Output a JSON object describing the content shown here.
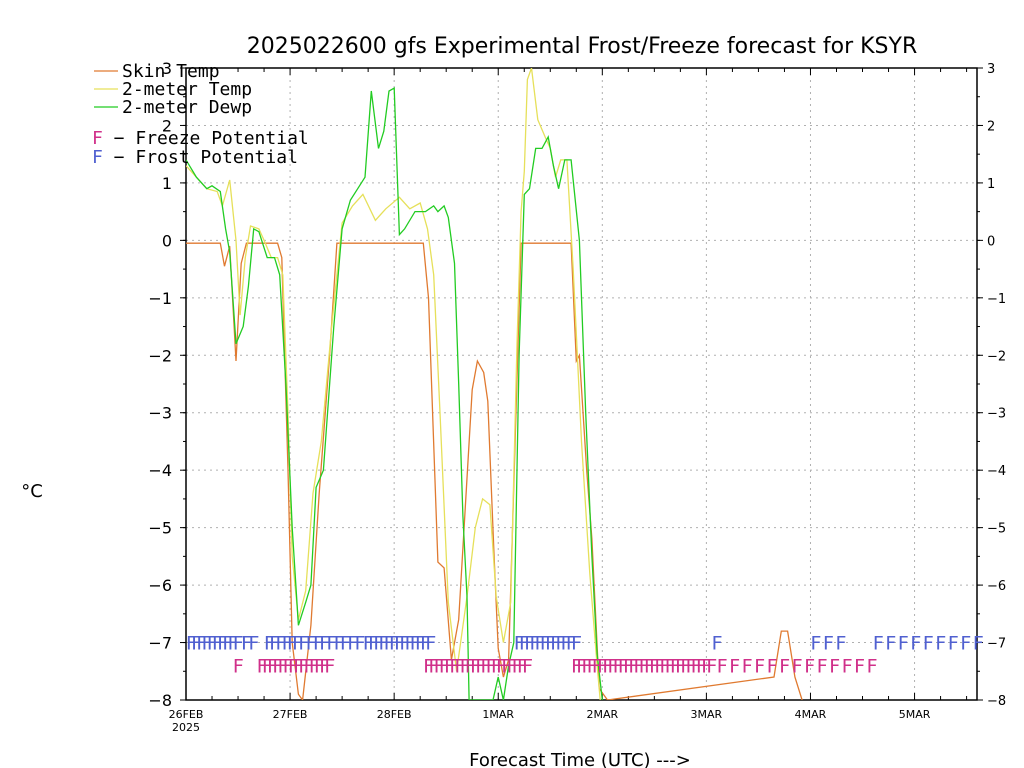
{
  "title": "2025022600 gfs Experimental Frost/Freeze forecast for KSYR",
  "chart_data": {
    "type": "line",
    "title": "2025022600 gfs Experimental Frost/Freeze forecast for KSYR",
    "xlabel": "Forecast Time (UTC) --->",
    "ylabel": "°C",
    "ylim": [
      -8,
      3
    ],
    "xlim": [
      0,
      7.6
    ],
    "grid": true,
    "legend_position": "top-left",
    "x_unit_note_hidden": true,
    "x_ticks": [
      {
        "x": 0,
        "label": "26FEB",
        "sub": "2025"
      },
      {
        "x": 1,
        "label": "27FEB",
        "sub": ""
      },
      {
        "x": 2,
        "label": "28FEB",
        "sub": ""
      },
      {
        "x": 3,
        "label": "1MAR",
        "sub": ""
      },
      {
        "x": 4,
        "label": "2MAR",
        "sub": ""
      },
      {
        "x": 5,
        "label": "3MAR",
        "sub": ""
      },
      {
        "x": 6,
        "label": "4MAR",
        "sub": ""
      },
      {
        "x": 7,
        "label": "5MAR",
        "sub": ""
      }
    ],
    "y_ticks": [
      3,
      2,
      1,
      0,
      -1,
      -2,
      -3,
      -4,
      -5,
      -6,
      -7,
      -8
    ],
    "y_tick_labels": [
      "3",
      "2",
      "1",
      "0",
      "−1",
      "−2",
      "−3",
      "−4",
      "−5",
      "−6",
      "−7",
      "−8"
    ],
    "series": [
      {
        "name": "Skin Temp",
        "color": "#e07a30",
        "points": [
          [
            0,
            -0.05
          ],
          [
            0.33,
            -0.05
          ],
          [
            0.37,
            -0.45
          ],
          [
            0.42,
            -0.1
          ],
          [
            0.48,
            -2.1
          ],
          [
            0.53,
            -0.4
          ],
          [
            0.58,
            -0.05
          ],
          [
            0.88,
            -0.05
          ],
          [
            0.92,
            -0.3
          ],
          [
            0.98,
            -4
          ],
          [
            1.02,
            -7
          ],
          [
            1.08,
            -7.9
          ],
          [
            1.12,
            -8
          ],
          [
            1.2,
            -6.7
          ],
          [
            1.28,
            -4.4
          ],
          [
            1.38,
            -2
          ],
          [
            1.45,
            -0.05
          ],
          [
            2.28,
            -0.05
          ],
          [
            2.33,
            -1
          ],
          [
            2.42,
            -5.6
          ],
          [
            2.48,
            -5.7
          ],
          [
            2.55,
            -7.3
          ],
          [
            2.62,
            -6.6
          ],
          [
            2.75,
            -2.6
          ],
          [
            2.8,
            -2.1
          ],
          [
            2.86,
            -2.3
          ],
          [
            2.9,
            -2.8
          ],
          [
            2.96,
            -5.5
          ],
          [
            3.0,
            -7.1
          ],
          [
            3.05,
            -7.6
          ],
          [
            3.1,
            -7.3
          ],
          [
            3.18,
            -2.4
          ],
          [
            3.22,
            -0.05
          ],
          [
            3.7,
            -0.05
          ],
          [
            3.75,
            -2.1
          ],
          [
            3.78,
            -2
          ],
          [
            3.85,
            -4
          ],
          [
            3.9,
            -5.2
          ],
          [
            3.97,
            -7.8
          ],
          [
            4.05,
            -8
          ],
          [
            5.65,
            -7.6
          ],
          [
            5.72,
            -6.8
          ],
          [
            5.78,
            -6.8
          ],
          [
            5.85,
            -7.6
          ],
          [
            5.92,
            -8
          ]
        ]
      },
      {
        "name": "2-meter Temp",
        "color": "#e6e05a",
        "points": [
          [
            0,
            1.3
          ],
          [
            0.1,
            1.1
          ],
          [
            0.2,
            0.9
          ],
          [
            0.3,
            0.85
          ],
          [
            0.35,
            0.6
          ],
          [
            0.42,
            1.05
          ],
          [
            0.48,
            0
          ],
          [
            0.52,
            -1.3
          ],
          [
            0.57,
            -0.3
          ],
          [
            0.62,
            0.25
          ],
          [
            0.7,
            0.2
          ],
          [
            0.75,
            0
          ],
          [
            0.82,
            -0.3
          ],
          [
            0.88,
            -0.3
          ],
          [
            0.93,
            -0.6
          ],
          [
            0.98,
            -3
          ],
          [
            1.02,
            -5.5
          ],
          [
            1.08,
            -6.6
          ],
          [
            1.15,
            -6.1
          ],
          [
            1.22,
            -4.4
          ],
          [
            1.3,
            -3.5
          ],
          [
            1.4,
            -1.5
          ],
          [
            1.5,
            0.3
          ],
          [
            1.6,
            0.6
          ],
          [
            1.7,
            0.8
          ],
          [
            1.82,
            0.35
          ],
          [
            1.92,
            0.55
          ],
          [
            2.05,
            0.75
          ],
          [
            2.15,
            0.55
          ],
          [
            2.25,
            0.65
          ],
          [
            2.32,
            0.2
          ],
          [
            2.38,
            -0.6
          ],
          [
            2.44,
            -3
          ],
          [
            2.52,
            -6.3
          ],
          [
            2.6,
            -7.5
          ],
          [
            2.7,
            -6.2
          ],
          [
            2.78,
            -5
          ],
          [
            2.85,
            -4.5
          ],
          [
            2.92,
            -4.6
          ],
          [
            2.98,
            -6.2
          ],
          [
            3.05,
            -7
          ],
          [
            3.12,
            -6.3
          ],
          [
            3.18,
            -1.8
          ],
          [
            3.22,
            0.5
          ],
          [
            3.25,
            1.2
          ],
          [
            3.28,
            2.8
          ],
          [
            3.32,
            3
          ],
          [
            3.38,
            2.1
          ],
          [
            3.45,
            1.8
          ],
          [
            3.5,
            1.6
          ],
          [
            3.55,
            1.1
          ],
          [
            3.6,
            1.4
          ],
          [
            3.66,
            1.4
          ],
          [
            3.72,
            -0.5
          ],
          [
            3.8,
            -3.5
          ],
          [
            3.88,
            -5.8
          ],
          [
            3.95,
            -7.4
          ],
          [
            3.98,
            -8
          ]
        ]
      },
      {
        "name": "2-meter Dewp",
        "color": "#22cc22",
        "points": [
          [
            0,
            1.4
          ],
          [
            0.1,
            1.1
          ],
          [
            0.2,
            0.9
          ],
          [
            0.25,
            0.95
          ],
          [
            0.33,
            0.85
          ],
          [
            0.38,
            0.2
          ],
          [
            0.42,
            -0.2
          ],
          [
            0.48,
            -1.8
          ],
          [
            0.55,
            -1.5
          ],
          [
            0.6,
            -0.8
          ],
          [
            0.65,
            0.2
          ],
          [
            0.7,
            0.15
          ],
          [
            0.78,
            -0.3
          ],
          [
            0.85,
            -0.3
          ],
          [
            0.9,
            -0.6
          ],
          [
            0.96,
            -2.5
          ],
          [
            1.02,
            -5
          ],
          [
            1.08,
            -6.7
          ],
          [
            1.15,
            -6.3
          ],
          [
            1.2,
            -6
          ],
          [
            1.25,
            -4.3
          ],
          [
            1.32,
            -4
          ],
          [
            1.42,
            -1.5
          ],
          [
            1.5,
            0.2
          ],
          [
            1.58,
            0.7
          ],
          [
            1.65,
            0.9
          ],
          [
            1.72,
            1.1
          ],
          [
            1.78,
            2.6
          ],
          [
            1.85,
            1.6
          ],
          [
            1.9,
            1.9
          ],
          [
            1.95,
            2.6
          ],
          [
            2.0,
            2.65
          ],
          [
            2.05,
            0.1
          ],
          [
            2.1,
            0.2
          ],
          [
            2.2,
            0.5
          ],
          [
            2.3,
            0.5
          ],
          [
            2.38,
            0.6
          ],
          [
            2.42,
            0.5
          ],
          [
            2.48,
            0.6
          ],
          [
            2.52,
            0.4
          ],
          [
            2.58,
            -0.4
          ],
          [
            2.62,
            -2.5
          ],
          [
            2.66,
            -4.8
          ],
          [
            2.7,
            -6.2
          ],
          [
            2.72,
            -8
          ],
          [
            2.95,
            -8
          ],
          [
            3.0,
            -7.6
          ],
          [
            3.05,
            -8
          ],
          [
            3.1,
            -7.4
          ],
          [
            3.15,
            -7
          ],
          [
            3.2,
            -2
          ],
          [
            3.25,
            0.8
          ],
          [
            3.3,
            0.9
          ],
          [
            3.36,
            1.6
          ],
          [
            3.42,
            1.6
          ],
          [
            3.48,
            1.8
          ],
          [
            3.53,
            1.3
          ],
          [
            3.58,
            0.9
          ],
          [
            3.64,
            1.4
          ],
          [
            3.7,
            1.4
          ],
          [
            3.78,
            0
          ],
          [
            3.84,
            -3
          ],
          [
            3.9,
            -5.5
          ],
          [
            3.95,
            -7.2
          ],
          [
            4.0,
            -8
          ]
        ]
      }
    ],
    "legend": [
      {
        "label": "Skin Temp",
        "color": "#e07a30"
      },
      {
        "label": "2-meter Temp",
        "color": "#e6e05a"
      },
      {
        "label": "2-meter Dewp",
        "color": "#22cc22"
      }
    ],
    "potential_legend": [
      {
        "letter": "F",
        "text": " − Freeze Potential",
        "color": "#d0308a"
      },
      {
        "letter": "F",
        "text": " − Frost Potential",
        "color": "#5060d0"
      }
    ],
    "frost_markers": {
      "color": "#5060d0",
      "y": -7,
      "x": [
        0.0,
        0.05,
        0.1,
        0.15,
        0.2,
        0.25,
        0.3,
        0.35,
        0.4,
        0.45,
        0.53,
        0.6,
        0.75,
        0.8,
        0.86,
        0.92,
        0.97,
        1.02,
        1.08,
        1.15,
        1.22,
        1.28,
        1.35,
        1.42,
        1.48,
        1.55,
        1.62,
        1.7,
        1.75,
        1.8,
        1.85,
        1.9,
        1.95,
        2.0,
        2.05,
        2.1,
        2.15,
        2.2,
        2.25,
        2.3,
        3.15,
        3.2,
        3.25,
        3.3,
        3.35,
        3.4,
        3.45,
        3.5,
        3.55,
        3.6,
        3.65,
        3.7,
        5.05,
        6.0,
        6.12,
        6.24,
        6.6,
        6.72,
        6.84,
        6.96,
        7.08,
        7.2,
        7.32,
        7.44,
        7.56
      ]
    },
    "freeze_markers": {
      "color": "#d0308a",
      "y": -7.4,
      "x": [
        0.45,
        0.68,
        0.73,
        0.78,
        0.83,
        0.88,
        0.93,
        0.98,
        1.03,
        1.08,
        1.13,
        1.18,
        1.23,
        1.28,
        1.33,
        2.28,
        2.33,
        2.38,
        2.43,
        2.48,
        2.53,
        2.58,
        2.63,
        2.68,
        2.73,
        2.78,
        2.83,
        2.88,
        2.93,
        2.98,
        3.03,
        3.08,
        3.13,
        3.18,
        3.23,
        3.7,
        3.75,
        3.8,
        3.85,
        3.9,
        3.95,
        4.0,
        4.05,
        4.1,
        4.15,
        4.2,
        4.25,
        4.3,
        4.35,
        4.4,
        4.45,
        4.5,
        4.55,
        4.6,
        4.65,
        4.7,
        4.75,
        4.8,
        4.85,
        4.9,
        4.95,
        5.0,
        5.1,
        5.22,
        5.34,
        5.46,
        5.58,
        5.7,
        5.82,
        5.94,
        6.06,
        6.18,
        6.3,
        6.42,
        6.54
      ]
    }
  }
}
